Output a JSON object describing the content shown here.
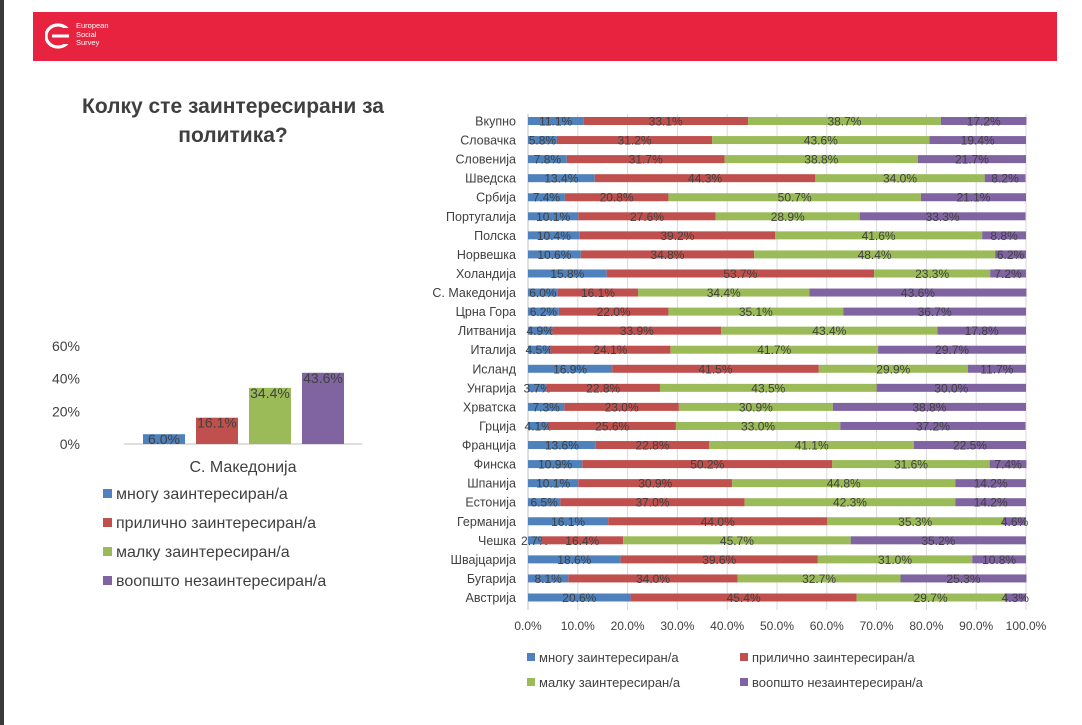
{
  "header": {
    "logo_text": "European\nSocial\nSurvey",
    "color": "#e8233f"
  },
  "page_title": "Колку сте заинтересирани за политика?",
  "colors": {
    "series": [
      "#4f81bd",
      "#c0504d",
      "#9bbb59",
      "#8064a2"
    ]
  },
  "chart_data": [
    {
      "type": "bar",
      "categories": [
        "С. Македонија"
      ],
      "series": [
        {
          "name": "многу заинтересиран/а",
          "values": [
            6.0
          ]
        },
        {
          "name": "прилично заинтересиран/а",
          "values": [
            16.1
          ]
        },
        {
          "name": "малку заинтересиран/а",
          "values": [
            34.4
          ]
        },
        {
          "name": "воопшто незаинтересиран/а",
          "values": [
            43.6
          ]
        }
      ],
      "data_labels": [
        "6.0%",
        "16.1%",
        "34.4%",
        "43.6%"
      ],
      "ylim": [
        0,
        60
      ],
      "y_ticks": [
        "0%",
        "20%",
        "40%",
        "60%"
      ],
      "legend": "bottom"
    },
    {
      "type": "bar",
      "orientation": "horizontal-stacked-100",
      "categories": [
        "Вкупно",
        "Словачка",
        "Словенија",
        "Шведска",
        "Србија",
        "Португалија",
        "Полска",
        "Норвешка",
        "Холандија",
        "С. Македонија",
        "Црна Гора",
        "Литванија",
        "Италија",
        "Исланд",
        "Унгарија",
        "Хрватска",
        "Грција",
        "Франција",
        "Финска",
        "Шпанија",
        "Естонија",
        "Германија",
        "Чешка",
        "Швајцарија",
        "Бугарија",
        "Австрија"
      ],
      "series": [
        {
          "name": "многу заинтересиран/а",
          "values": [
            11.1,
            5.8,
            7.8,
            13.4,
            7.4,
            10.1,
            10.4,
            10.6,
            15.8,
            6.0,
            6.2,
            4.9,
            4.5,
            16.9,
            3.7,
            7.3,
            4.1,
            13.6,
            10.9,
            10.1,
            6.5,
            16.1,
            2.7,
            18.6,
            8.1,
            20.6
          ]
        },
        {
          "name": "прилично заинтересиран/а",
          "values": [
            33.1,
            31.2,
            31.7,
            44.3,
            20.8,
            27.6,
            39.2,
            34.8,
            53.7,
            16.1,
            22.0,
            33.9,
            24.1,
            41.5,
            22.8,
            23.0,
            25.6,
            22.8,
            50.2,
            30.9,
            37.0,
            44.0,
            16.4,
            39.6,
            34.0,
            45.4
          ]
        },
        {
          "name": "малку заинтересиран/а",
          "values": [
            38.7,
            43.6,
            38.8,
            34.0,
            50.7,
            28.9,
            41.6,
            48.4,
            23.3,
            34.4,
            35.1,
            43.4,
            41.7,
            29.9,
            43.5,
            30.9,
            33.0,
            41.1,
            31.6,
            44.8,
            42.3,
            35.3,
            45.7,
            31.0,
            32.7,
            29.7
          ]
        },
        {
          "name": "воопшто незаинтересиран/а",
          "values": [
            17.2,
            19.4,
            21.7,
            8.2,
            21.1,
            33.3,
            8.8,
            6.2,
            7.2,
            43.6,
            36.7,
            17.8,
            29.7,
            11.7,
            30.0,
            38.8,
            37.2,
            22.5,
            7.4,
            14.2,
            14.2,
            4.6,
            35.2,
            10.8,
            25.3,
            4.3
          ]
        }
      ],
      "xlim": [
        0,
        100
      ],
      "x_ticks": [
        "0.0%",
        "10.0%",
        "20.0%",
        "30.0%",
        "40.0%",
        "50.0%",
        "60.0%",
        "70.0%",
        "80.0%",
        "90.0%",
        "100.0%"
      ],
      "legend": "bottom"
    }
  ]
}
